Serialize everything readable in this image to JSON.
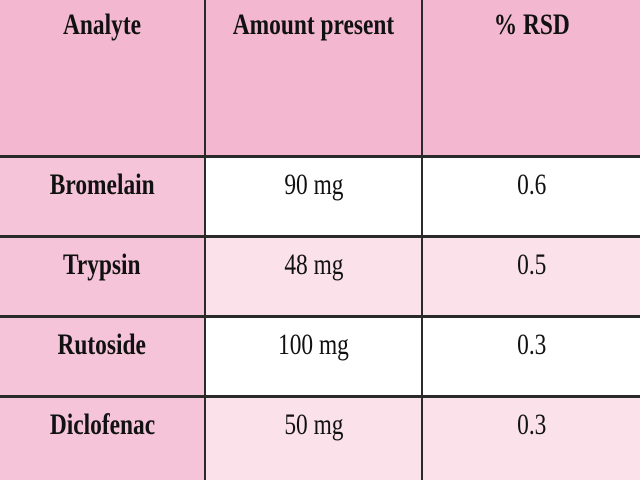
{
  "table": {
    "headers": [
      "Analyte",
      "Amount present",
      "% RSD"
    ],
    "rows": [
      [
        "Bromelain",
        "90 mg",
        "0.6"
      ],
      [
        "Trypsin",
        "48 mg",
        "0.5"
      ],
      [
        "Rutoside",
        "100 mg",
        "0.3"
      ],
      [
        "Diclofenac",
        "50 mg",
        "0.3"
      ]
    ]
  },
  "colors": {
    "header_background": "#f3b8cf",
    "first_column_background": "#f6c4d8",
    "alternate_row_background": "#fbe1ea",
    "border": "#2a2a2a"
  }
}
